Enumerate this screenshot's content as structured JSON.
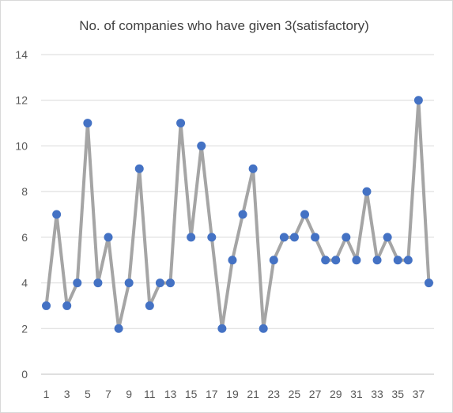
{
  "chart_data": {
    "type": "line",
    "title": "No. of companies who have given 3(satisfactory)",
    "xlabel": "",
    "ylabel": "",
    "ylim": [
      0,
      14
    ],
    "y_ticks": [
      0,
      2,
      4,
      6,
      8,
      10,
      12,
      14
    ],
    "x": [
      1,
      2,
      3,
      4,
      5,
      6,
      7,
      8,
      9,
      10,
      11,
      12,
      13,
      14,
      15,
      16,
      17,
      18,
      19,
      20,
      21,
      22,
      23,
      24,
      25,
      26,
      27,
      28,
      29,
      30,
      31,
      32,
      33,
      34,
      35,
      36,
      37,
      38
    ],
    "x_tick_labels": [
      "1",
      "3",
      "5",
      "7",
      "9",
      "11",
      "13",
      "15",
      "17",
      "19",
      "21",
      "23",
      "25",
      "27",
      "29",
      "31",
      "33",
      "35",
      "37"
    ],
    "values": [
      3,
      7,
      3,
      4,
      11,
      4,
      6,
      2,
      4,
      9,
      3,
      4,
      4,
      11,
      6,
      10,
      6,
      2,
      5,
      7,
      9,
      2,
      5,
      6,
      6,
      7,
      6,
      5,
      5,
      6,
      5,
      8,
      5,
      6,
      5,
      5,
      12,
      4
    ],
    "grid": true,
    "legend": "none",
    "colors": {
      "line": "#a5a5a5",
      "marker": "#4472c4",
      "grid": "#d9d9d9"
    }
  }
}
